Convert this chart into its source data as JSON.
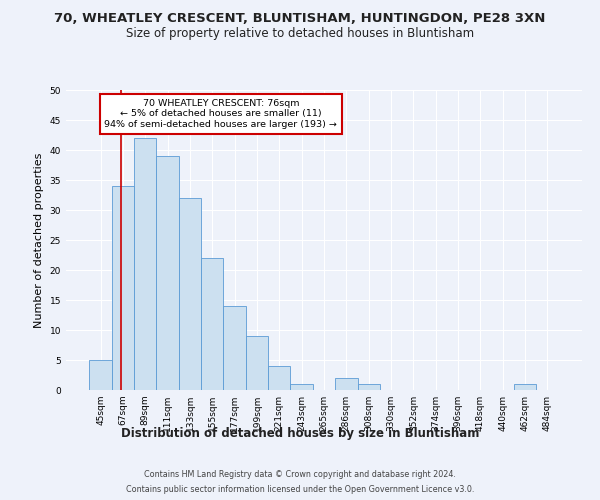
{
  "title1": "70, WHEATLEY CRESCENT, BLUNTISHAM, HUNTINGDON, PE28 3XN",
  "title2": "Size of property relative to detached houses in Bluntisham",
  "xlabel": "Distribution of detached houses by size in Bluntisham",
  "ylabel": "Number of detached properties",
  "categories": [
    "45sqm",
    "67sqm",
    "89sqm",
    "111sqm",
    "133sqm",
    "155sqm",
    "177sqm",
    "199sqm",
    "221sqm",
    "243sqm",
    "265sqm",
    "286sqm",
    "308sqm",
    "330sqm",
    "352sqm",
    "374sqm",
    "396sqm",
    "418sqm",
    "440sqm",
    "462sqm",
    "484sqm"
  ],
  "values": [
    5,
    34,
    42,
    39,
    32,
    22,
    14,
    9,
    4,
    1,
    0,
    2,
    1,
    0,
    0,
    0,
    0,
    0,
    0,
    1,
    0
  ],
  "bar_color": "#cce0f0",
  "bar_edgecolor": "#5b9bd5",
  "ylim": [
    0,
    50
  ],
  "yticks": [
    0,
    5,
    10,
    15,
    20,
    25,
    30,
    35,
    40,
    45,
    50
  ],
  "annotation_title": "70 WHEATLEY CRESCENT: 76sqm",
  "annotation_line1": "← 5% of detached houses are smaller (11)",
  "annotation_line2": "94% of semi-detached houses are larger (193) →",
  "annotation_box_color": "#ffffff",
  "annotation_box_edgecolor": "#cc0000",
  "footer1": "Contains HM Land Registry data © Crown copyright and database right 2024.",
  "footer2": "Contains public sector information licensed under the Open Government Licence v3.0.",
  "background_color": "#eef2fa",
  "grid_color": "#ffffff",
  "title1_fontsize": 9.5,
  "title2_fontsize": 8.5,
  "xlabel_fontsize": 8.5,
  "ylabel_fontsize": 8,
  "tick_fontsize": 6.5,
  "footer_fontsize": 5.8
}
